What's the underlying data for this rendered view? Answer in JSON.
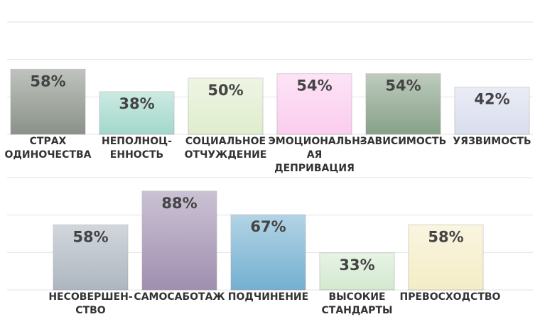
{
  "chart_data": [
    {
      "type": "bar",
      "categories": [
        "СТРАХ\nОДИНОЧЕСТВА",
        "НЕПОЛНОЦ-\nЕННОСТЬ",
        "СОЦИАЛЬНОЕ\nОТЧУЖДЕНИЕ",
        "ЭМОЦИОНАЛЬН-\nАЯ ДЕПРИВАЦИЯ",
        "ЗАВИСИМОСТЬ",
        "УЯЗВИМОСТЬ"
      ],
      "values": [
        58,
        38,
        50,
        54,
        54,
        42
      ],
      "value_labels": [
        "58%",
        "38%",
        "50%",
        "54%",
        "54%",
        "42%"
      ],
      "colors": [
        "#8a9288",
        "#a2d8cb",
        "#e0edcd",
        "#fbcdee",
        "#87a188",
        "#d9deee"
      ],
      "ylim": [
        0,
        100
      ],
      "grid_lines": [
        0,
        33.3,
        66.7,
        100
      ]
    },
    {
      "type": "bar",
      "categories": [
        "НЕСОВЕРШЕН-\nСТВО",
        "САМОСАБОТАЖ",
        "ПОДЧИНЕНИЕ",
        "ВЫСОКИЕ\nСТАНДАРТЫ",
        "ПРЕВОСХОДСТВО"
      ],
      "values": [
        58,
        88,
        67,
        33,
        58
      ],
      "value_labels": [
        "58%",
        "88%",
        "67%",
        "33%",
        "58%"
      ],
      "colors": [
        "#adb6c0",
        "#a08fb0",
        "#74b0d0",
        "#d3eacf",
        "#f4edc6"
      ],
      "ylim": [
        0,
        100
      ],
      "grid_lines": [
        0,
        33.3,
        66.7,
        100
      ]
    }
  ]
}
